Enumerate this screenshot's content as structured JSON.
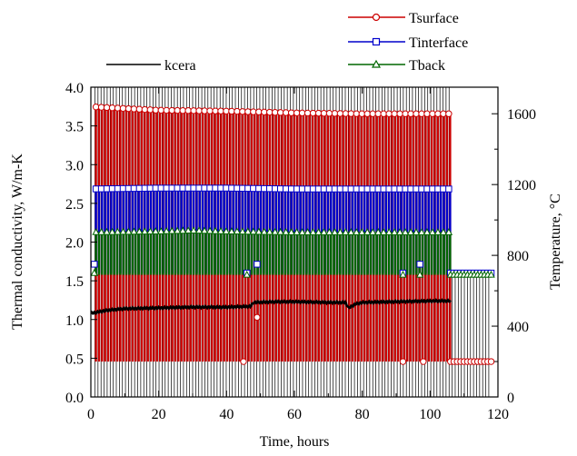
{
  "chart_data": {
    "type": "line",
    "xlabel": "Time, hours",
    "ylabel_left": "Thermal conductivity, W/m-K",
    "ylabel_right": "Temperature, °C",
    "xlim": [
      0,
      120
    ],
    "ylim_left": [
      0,
      4.0
    ],
    "ylim_right": [
      0,
      1750
    ],
    "x_ticks": [
      "0",
      "20",
      "40",
      "60",
      "80",
      "100",
      "120"
    ],
    "y_left_ticks": [
      "0.0",
      "0.5",
      "1.0",
      "1.5",
      "2.0",
      "2.5",
      "3.0",
      "3.5",
      "4.0"
    ],
    "y_right_ticks": [
      "0",
      "400",
      "800",
      "1200",
      "1600"
    ],
    "grid": false,
    "legend_placement": "top",
    "series": [
      {
        "name": "Tsurface",
        "axis": "right",
        "color": "#cc0000",
        "marker": "circle",
        "cycle_start": 1.5,
        "cycle_end": 106,
        "cycle_period": 0.9,
        "high": [
          [
            0,
            1640
          ],
          [
            20,
            1620
          ],
          [
            40,
            1615
          ],
          [
            60,
            1605
          ],
          [
            80,
            1600
          ],
          [
            100,
            1600
          ],
          [
            106,
            1600
          ]
        ],
        "low": 200,
        "outliers": [
          [
            45,
            200
          ],
          [
            49,
            450
          ],
          [
            92,
            200
          ],
          [
            98,
            200
          ]
        ],
        "tail_x": [
          106,
          107,
          108,
          109,
          110,
          111,
          112,
          113,
          114,
          115,
          116,
          117,
          118
        ],
        "tail_y": 200
      },
      {
        "name": "Tinterface",
        "axis": "right",
        "color": "#0000cc",
        "marker": "square",
        "cycle_start": 1.5,
        "cycle_end": 106,
        "cycle_period": 0.9,
        "high": [
          [
            0,
            1175
          ],
          [
            20,
            1180
          ],
          [
            40,
            1180
          ],
          [
            60,
            1175
          ],
          [
            80,
            1175
          ],
          [
            100,
            1175
          ],
          [
            106,
            1175
          ]
        ],
        "low": 700,
        "outliers": [
          [
            1,
            750
          ],
          [
            46,
            700
          ],
          [
            49,
            750
          ],
          [
            92,
            700
          ],
          [
            97,
            750
          ]
        ],
        "tail_x": [
          106,
          107,
          108,
          109,
          110,
          111,
          112,
          113,
          114,
          115,
          116,
          117,
          118
        ],
        "tail_y": 700
      },
      {
        "name": "Tback",
        "axis": "right",
        "color": "#006600",
        "marker": "triangle",
        "cycle_start": 1.5,
        "cycle_end": 106,
        "cycle_period": 0.9,
        "high": [
          [
            0,
            930
          ],
          [
            20,
            935
          ],
          [
            30,
            940
          ],
          [
            40,
            935
          ],
          [
            60,
            930
          ],
          [
            80,
            930
          ],
          [
            100,
            930
          ],
          [
            106,
            930
          ]
        ],
        "low": 690,
        "outliers": [
          [
            1,
            700
          ],
          [
            46,
            690
          ],
          [
            92,
            690
          ],
          [
            97,
            690
          ]
        ],
        "tail_x": [
          106,
          107,
          108,
          109,
          110,
          111,
          112,
          113,
          114,
          115,
          116,
          117,
          118
        ],
        "tail_y": 690
      },
      {
        "name": "kcera",
        "axis": "left",
        "color": "#000000",
        "marker": "none",
        "x": [
          0,
          5,
          10,
          20,
          30,
          40,
          47,
          48,
          55,
          60,
          70,
          75,
          76,
          78,
          80,
          90,
          100,
          106
        ],
        "y": [
          1.08,
          1.12,
          1.14,
          1.15,
          1.16,
          1.16,
          1.17,
          1.22,
          1.23,
          1.23,
          1.22,
          1.22,
          1.15,
          1.2,
          1.22,
          1.23,
          1.24,
          1.24
        ]
      }
    ]
  }
}
